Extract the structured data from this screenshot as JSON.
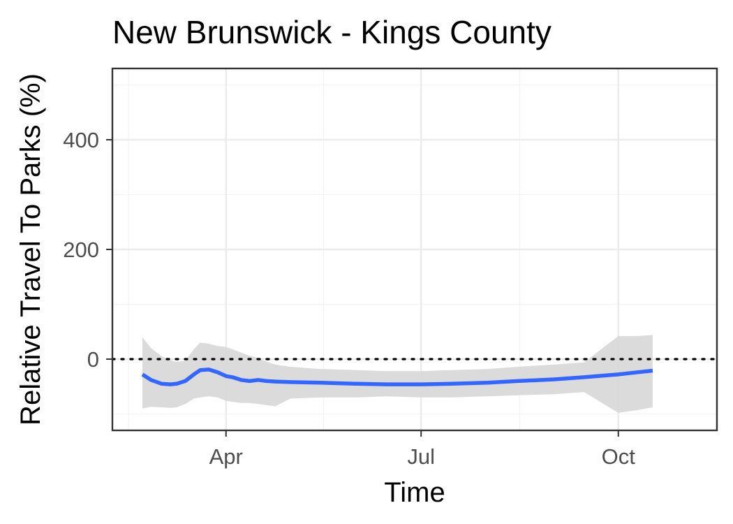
{
  "chart_data": {
    "type": "line",
    "title": "New Brunswick - Kings County",
    "xlabel": "Time",
    "ylabel": "Relative Travel To Parks (%)",
    "x_ticks": [
      {
        "label": "Apr",
        "date": "2020-04-01"
      },
      {
        "label": "Jul",
        "date": "2020-07-01"
      },
      {
        "label": "Oct",
        "date": "2020-10-01"
      }
    ],
    "xlim": [
      "2020-02-08",
      "2020-11-16"
    ],
    "y_ticks": [
      0,
      200,
      400
    ],
    "ylim": [
      -130,
      530
    ],
    "reference_line": {
      "y": 0,
      "style": "dotted"
    },
    "grid": true,
    "colors": {
      "line": "#3366ff",
      "ribbon": "#d9d9d9",
      "reference": "#000000"
    },
    "series": [
      {
        "x": [
          "2020-02-22",
          "2020-02-26",
          "2020-03-02",
          "2020-03-06",
          "2020-03-09",
          "2020-03-13",
          "2020-03-17",
          "2020-03-20",
          "2020-03-24",
          "2020-03-28",
          "2020-04-01",
          "2020-04-04",
          "2020-04-08",
          "2020-04-12",
          "2020-04-16",
          "2020-04-20",
          "2020-04-24",
          "2020-05-01",
          "2020-05-15",
          "2020-06-01",
          "2020-06-15",
          "2020-07-01",
          "2020-07-15",
          "2020-08-01",
          "2020-08-15",
          "2020-09-01",
          "2020-09-15",
          "2020-10-01",
          "2020-10-10",
          "2020-10-17"
        ],
        "y": [
          -28,
          -38,
          -45,
          -46,
          -45,
          -40,
          -28,
          -20,
          -19,
          -24,
          -31,
          -33,
          -38,
          -40,
          -38,
          -40,
          -41,
          -42,
          -43,
          -45,
          -46,
          -46,
          -45,
          -43,
          -40,
          -37,
          -33,
          -28,
          -24,
          -21
        ],
        "upper": [
          40,
          20,
          5,
          -2,
          -5,
          -3,
          18,
          30,
          28,
          24,
          22,
          18,
          12,
          6,
          2,
          -5,
          -10,
          -14,
          -18,
          -20,
          -22,
          -22,
          -20,
          -18,
          -14,
          -10,
          -6,
          42,
          42,
          44
        ],
        "lower": [
          -90,
          -87,
          -88,
          -89,
          -88,
          -82,
          -72,
          -70,
          -68,
          -70,
          -76,
          -78,
          -80,
          -80,
          -82,
          -84,
          -86,
          -72,
          -70,
          -70,
          -68,
          -70,
          -70,
          -68,
          -66,
          -64,
          -60,
          -98,
          -93,
          -88
        ]
      }
    ]
  }
}
